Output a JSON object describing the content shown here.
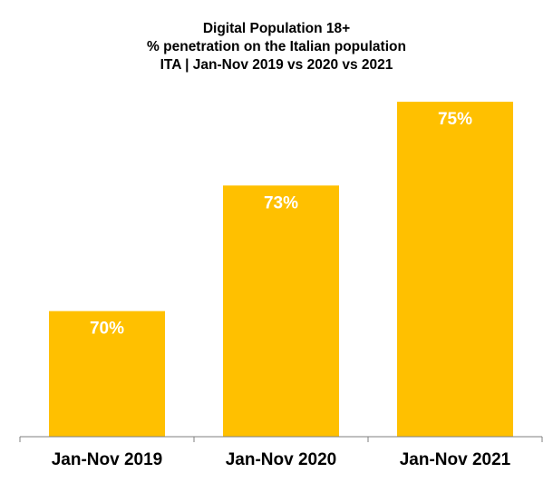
{
  "chart_data": {
    "type": "bar",
    "title": [
      "Digital Population 18+",
      "% penetration on the Italian population",
      "ITA | Jan-Nov 2019 vs 2020 vs 2021"
    ],
    "categories": [
      "Jan-Nov 2019",
      "Jan-Nov 2020",
      "Jan-Nov 2021"
    ],
    "values": [
      70,
      73,
      75
    ],
    "data_labels": [
      "70%",
      "73%",
      "75%"
    ],
    "value_axis_shown": false,
    "grid": false,
    "legend": "none",
    "ylim": [
      67,
      76
    ],
    "colors": {
      "bar": "#FFC000",
      "data_label": "#FFFFFF",
      "axis": "#7F7F7F"
    }
  }
}
